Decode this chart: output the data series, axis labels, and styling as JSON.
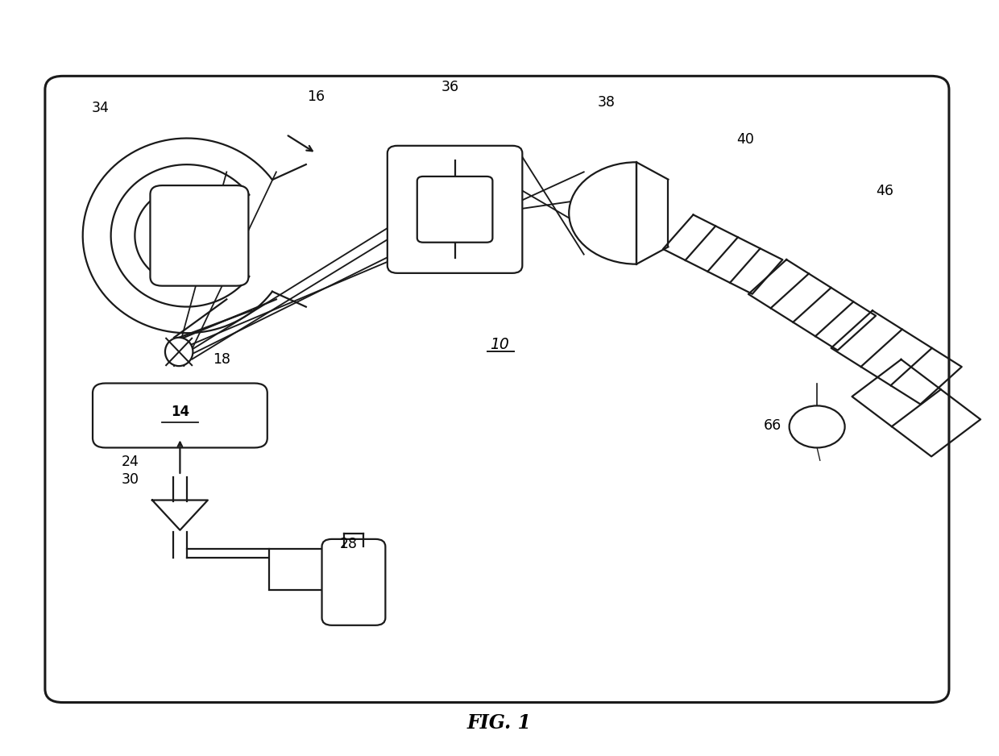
{
  "title": "FIG. 1",
  "bg_color": "#ffffff",
  "line_color": "#1a1a1a",
  "fig_width": 12.4,
  "fig_height": 9.38
}
